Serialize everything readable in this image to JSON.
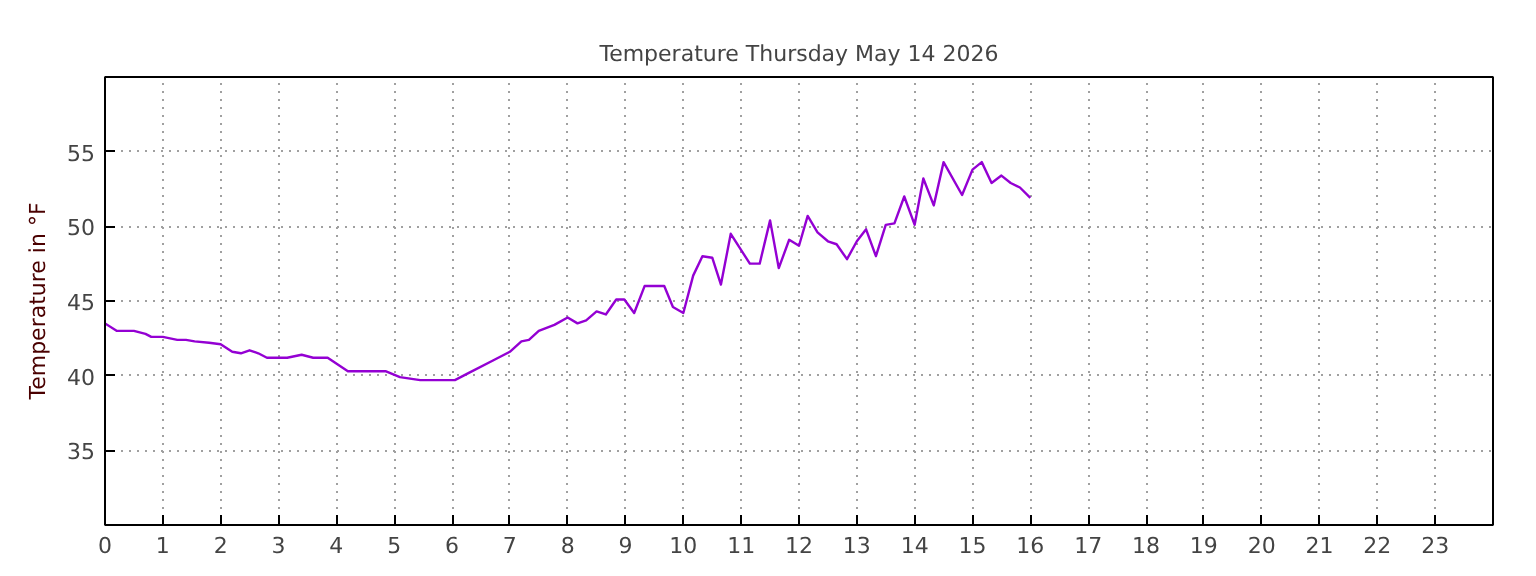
{
  "chart_data": {
    "type": "line",
    "title": "Temperature Thursday May 14 2026",
    "ylabel": "Temperature in °F",
    "xlim": [
      0,
      24
    ],
    "xticks": [
      0,
      1,
      2,
      3,
      4,
      5,
      6,
      7,
      8,
      9,
      10,
      11,
      12,
      13,
      14,
      15,
      16,
      17,
      18,
      19,
      20,
      21,
      22,
      23
    ],
    "ylim": [
      30,
      60
    ],
    "yticks": [
      35,
      40,
      45,
      50,
      55
    ],
    "grid": true,
    "marker": "none",
    "line_style": "solid",
    "series": [
      {
        "color": "#9400d3",
        "x": [
          0,
          0.2,
          0.5,
          0.7,
          0.8,
          1.0,
          1.25,
          1.4,
          1.55,
          1.8,
          2.0,
          2.2,
          2.35,
          2.5,
          2.65,
          2.8,
          3.15,
          3.4,
          3.6,
          3.85,
          4.2,
          4.85,
          5.1,
          5.45,
          6.05,
          6.3,
          6.7,
          7.0,
          7.2,
          7.33,
          7.5,
          7.77,
          8.0,
          8.17,
          8.32,
          8.5,
          8.66,
          8.84,
          8.98,
          9.15,
          9.33,
          9.67,
          9.82,
          10.0,
          10.17,
          10.33,
          10.5,
          10.65,
          10.82,
          11.15,
          11.32,
          11.5,
          11.65,
          11.83,
          12.0,
          12.15,
          12.32,
          12.5,
          12.65,
          12.83,
          13.0,
          13.16,
          13.33,
          13.5,
          13.65,
          13.82,
          14.0,
          14.15,
          14.33,
          14.5,
          14.82,
          15.0,
          15.16,
          15.33,
          15.5,
          15.66,
          15.82,
          16.0
        ],
        "values": [
          43.5,
          43.0,
          43.0,
          42.8,
          42.6,
          42.6,
          42.4,
          42.4,
          42.3,
          42.2,
          42.1,
          41.6,
          41.5,
          41.7,
          41.5,
          41.2,
          41.2,
          41.4,
          41.2,
          41.2,
          40.3,
          40.3,
          39.9,
          39.7,
          39.7,
          40.2,
          41.0,
          41.6,
          42.3,
          42.4,
          43.0,
          43.4,
          43.9,
          43.5,
          43.7,
          44.3,
          44.1,
          45.1,
          45.1,
          44.2,
          46.0,
          46.0,
          44.6,
          44.2,
          46.7,
          48.0,
          47.9,
          46.1,
          49.5,
          47.5,
          47.5,
          50.4,
          47.2,
          49.1,
          48.7,
          50.7,
          49.6,
          49.0,
          48.8,
          47.8,
          49.0,
          49.8,
          48.0,
          50.1,
          50.2,
          52.0,
          50.1,
          53.2,
          51.4,
          54.3,
          52.1,
          53.8,
          54.3,
          52.9,
          53.4,
          52.9,
          52.6,
          51.9
        ]
      }
    ]
  }
}
